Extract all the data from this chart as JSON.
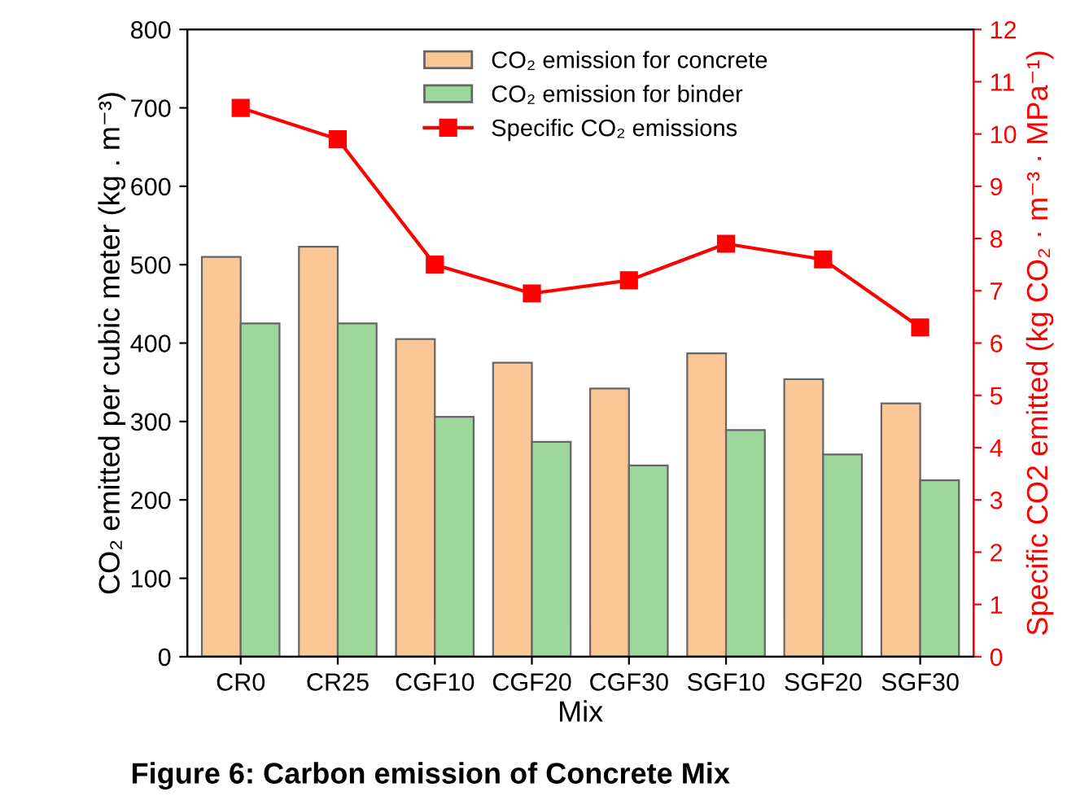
{
  "chart_data": {
    "type": "bar",
    "categories": [
      "CR0",
      "CR25",
      "CGF10",
      "CGF20",
      "CGF30",
      "SGF10",
      "SGF20",
      "SGF30"
    ],
    "series": [
      {
        "name": "CO₂ emission for concrete",
        "color": "#fcc797",
        "values": [
          510,
          523,
          405,
          375,
          342,
          387,
          354,
          323
        ]
      },
      {
        "name": "CO₂ emission for binder",
        "color": "#9dd79b",
        "values": [
          425,
          425,
          306,
          274,
          244,
          289,
          258,
          225
        ]
      },
      {
        "name": "Specific CO₂ emissions",
        "type": "line",
        "axis": "y2",
        "color": "#ff0000",
        "marker": "square",
        "values": [
          10.5,
          9.9,
          7.5,
          6.95,
          7.2,
          7.9,
          7.6,
          6.3
        ]
      }
    ],
    "xlabel": "Mix",
    "ylabel": "CO₂ emitted per cubic meter (kg . m⁻³)",
    "y2label": "Specific CO2 emitted (kg CO₂ · m⁻³ · MPa⁻¹)",
    "ylim": [
      0,
      800
    ],
    "yticks": [
      0,
      100,
      200,
      300,
      400,
      500,
      600,
      700,
      800
    ],
    "y2lim": [
      0,
      12
    ],
    "y2ticks": [
      0,
      1,
      2,
      3,
      4,
      5,
      6,
      7,
      8,
      9,
      10,
      11,
      12
    ],
    "annotations": [
      "Figure 6: Carbon emission of Concrete Mix"
    ],
    "legend": "top",
    "grid": false
  }
}
